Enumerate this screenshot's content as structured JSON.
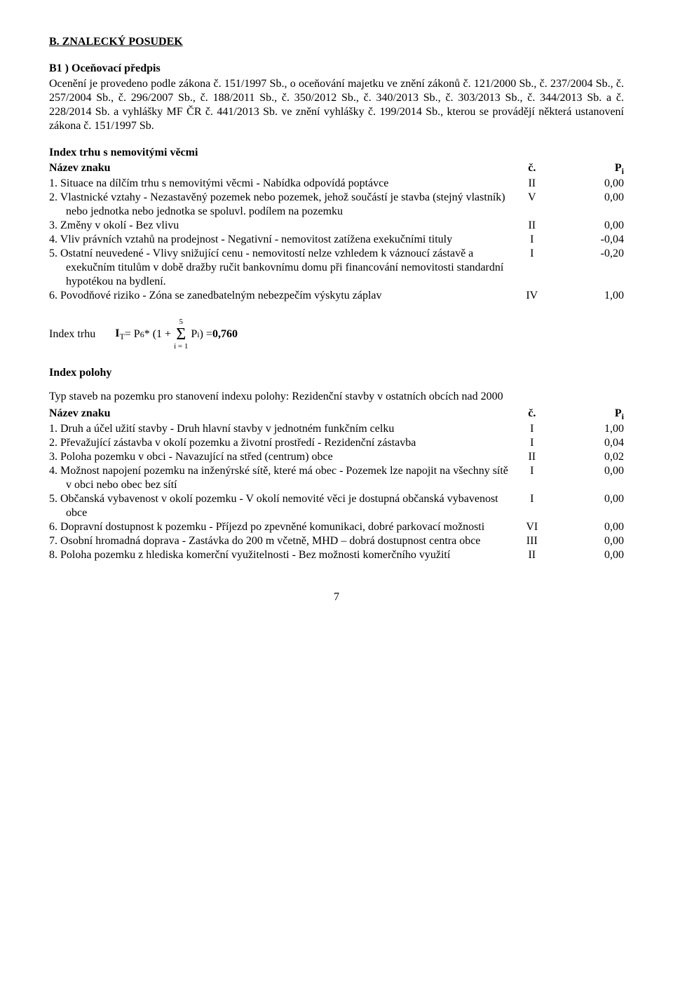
{
  "section_title": "B. ZNALECKÝ POSUDEK",
  "sub_title": "B1 ) Oceňovací předpis",
  "para": "Ocenění je provedeno podle zákona č. 151/1997 Sb., o oceňování majetku ve znění zákonů č. 121/2000 Sb., č. 237/2004 Sb., č. 257/2004 Sb., č. 296/2007 Sb., č. 188/2011 Sb., č. 350/2012 Sb., č. 340/2013 Sb., č. 303/2013 Sb., č. 344/2013 Sb. a č. 228/2014 Sb. a vyhlášky MF ČR č. 441/2013 Sb. ve znění vyhlášky č. 199/2014 Sb., kterou se provádějí některá ustanovení zákona č. 151/1997 Sb.",
  "trhu": {
    "heading": "Index trhu s nemovitými věcmi",
    "hdr_name": "Název znaku",
    "hdr_c": "č.",
    "hdr_p": "P",
    "hdr_p_sub": "i",
    "rows": [
      {
        "txt": "1. Situace na dílčím trhu s nemovitými věcmi - Nabídka odpovídá poptávce",
        "num": "II",
        "val": "0,00"
      },
      {
        "txt": "2. Vlastnické vztahy - Nezastavěný pozemek nebo pozemek, jehož součástí je stavba (stejný vlastník) nebo jednotka nebo jednotka se spoluvl. podílem na pozemku",
        "num": "V",
        "val": "0,00"
      },
      {
        "txt": "3. Změny v okolí - Bez vlivu",
        "num": "II",
        "val": "0,00"
      },
      {
        "txt": "4. Vliv právních vztahů na prodejnost - Negativní - nemovitost zatížena exekučními tituly",
        "num": "I",
        "val": "-0,04"
      },
      {
        "txt": "5. Ostatní neuvedené - Vlivy snižující cenu - nemovitostí nelze vzhledem k váznoucí zástavě a exekučním titulům v době dražby ručit bankovnímu domu při  financování nemovitosti standardní hypotékou na bydlení.",
        "num": "I",
        "val": "-0,20"
      },
      {
        "txt": "6. Povodňové riziko - Zóna se zanedbatelným nebezpečím výskytu záplav",
        "num": "IV",
        "val": "1,00"
      }
    ]
  },
  "formula": {
    "label": "Index trhu",
    "lhs1": "I",
    "lhs1_sub": "T",
    "eq": " = P",
    "p6sub": "6",
    "mid": " * (1 + ",
    "sigma_top": "5",
    "sigma_bot": "i = 1",
    "pi": " P",
    "pi_sub": "i",
    "close": ") = ",
    "result": "0,760"
  },
  "polohy": {
    "heading": "Index polohy",
    "typ": "Typ staveb na pozemku pro stanovení indexu polohy: Rezidenční stavby v ostatních obcích nad 2000",
    "hdr_name": "Název znaku",
    "hdr_c": "č.",
    "hdr_p": "P",
    "hdr_p_sub": "i",
    "rows": [
      {
        "txt": "1. Druh a účel užití stavby - Druh hlavní stavby v jednotném funkčním celku",
        "num": "I",
        "val": "1,00"
      },
      {
        "txt": "2. Převažující zástavba v okolí pozemku a životní prostředí - Rezidenční zástavba",
        "num": "I",
        "val": "0,04"
      },
      {
        "txt": "3. Poloha pozemku v obci - Navazující na střed (centrum) obce",
        "num": "II",
        "val": "0,02"
      },
      {
        "txt": "4. Možnost napojení pozemku na inženýrské sítě, které má obec - Pozemek lze napojit na všechny sítě v obci nebo obec bez sítí",
        "num": "I",
        "val": "0,00"
      },
      {
        "txt": "5. Občanská vybavenost v okolí pozemku - V okolí nemovité věci je dostupná občanská vybavenost obce",
        "num": "I",
        "val": "0,00"
      },
      {
        "txt": "6. Dopravní dostupnost k pozemku - Příjezd po zpevněné komunikaci, dobré parkovací možnosti",
        "num": "VI",
        "val": "0,00"
      },
      {
        "txt": "7. Osobní hromadná doprava - Zastávka do 200 m včetně, MHD – dobrá dostupnost centra obce",
        "num": "III",
        "val": "0,00"
      },
      {
        "txt": "8. Poloha pozemku z hlediska komerční využitelnosti - Bez možnosti komerčního využití",
        "num": "II",
        "val": "0,00"
      }
    ]
  },
  "page_number": "7"
}
